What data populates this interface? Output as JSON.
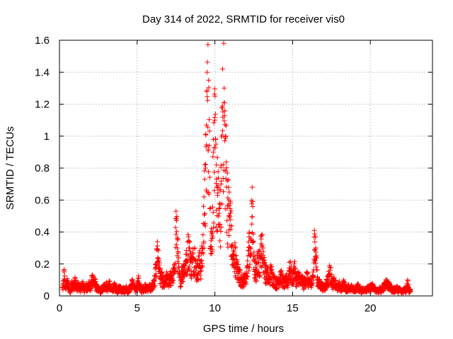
{
  "chart_data": {
    "type": "scatter",
    "title": "Day 314 of 2022, SRMTID for receiver vis0",
    "xlabel": "GPS time / hours",
    "ylabel": "SRMTID / TECUs",
    "xlim": [
      0,
      24
    ],
    "ylim": [
      0,
      1.6
    ],
    "xticks": [
      0,
      5,
      10,
      15,
      20
    ],
    "yticks": [
      0,
      0.2,
      0.4,
      0.6,
      0.8,
      1,
      1.2,
      1.4,
      1.6
    ],
    "xtick_labels": [
      "0",
      "5",
      "10",
      "15",
      "20"
    ],
    "ytick_labels": [
      "0",
      "0.2",
      "0.4",
      "0.6",
      "0.8",
      "1",
      "1.2",
      "1.4",
      "1.6"
    ],
    "grid": true,
    "marker": "+",
    "color": "#ff0000",
    "series": [
      {
        "name": "vis0",
        "x": [
          0.0,
          0.1,
          0.2,
          0.3,
          0.4,
          0.5,
          0.6,
          0.7,
          0.8,
          0.9,
          1.0,
          1.1,
          1.2,
          1.3,
          1.4,
          1.5,
          1.6,
          1.7,
          1.8,
          1.9,
          2.0,
          2.1,
          2.2,
          2.3,
          2.4,
          2.5,
          2.6,
          2.7,
          2.8,
          2.9,
          3.0,
          3.1,
          3.2,
          3.3,
          3.4,
          3.5,
          3.6,
          3.7,
          3.8,
          3.9,
          4.0,
          4.1,
          4.2,
          4.3,
          4.4,
          4.5,
          4.6,
          4.7,
          4.8,
          4.9,
          5.0,
          5.1,
          5.2,
          5.3,
          5.4,
          5.5,
          5.6,
          5.7,
          5.8,
          5.9,
          6.0,
          6.1,
          6.2,
          6.3,
          6.4,
          6.5,
          6.6,
          6.7,
          6.8,
          6.9,
          7.0,
          7.1,
          7.2,
          7.3,
          7.4,
          7.5,
          7.6,
          7.7,
          7.8,
          7.9,
          8.0,
          8.1,
          8.2,
          8.3,
          8.4,
          8.5,
          8.6,
          8.7,
          8.8,
          8.9,
          9.0,
          9.1,
          9.2,
          9.3,
          9.4,
          9.5,
          9.6,
          9.7,
          9.8,
          9.9,
          10.0,
          10.1,
          10.2,
          10.3,
          10.4,
          10.5,
          10.6,
          10.7,
          10.8,
          10.9,
          11.0,
          11.1,
          11.2,
          11.3,
          11.4,
          11.5,
          11.6,
          11.7,
          11.8,
          11.9,
          12.0,
          12.1,
          12.2,
          12.3,
          12.4,
          12.5,
          12.6,
          12.7,
          12.8,
          12.9,
          13.0,
          13.1,
          13.2,
          13.3,
          13.4,
          13.5,
          13.6,
          13.7,
          13.8,
          13.9,
          14.0,
          14.1,
          14.2,
          14.3,
          14.4,
          14.5,
          14.6,
          14.7,
          14.8,
          14.9,
          15.0,
          15.1,
          15.2,
          15.3,
          15.4,
          15.5,
          15.6,
          15.7,
          15.8,
          15.9,
          16.0,
          16.1,
          16.2,
          16.3,
          16.4,
          16.5,
          16.6,
          16.7,
          16.8,
          16.9,
          17.0,
          17.1,
          17.2,
          17.3,
          17.4,
          17.5,
          17.6,
          17.7,
          17.8,
          17.9,
          18.0,
          18.1,
          18.2,
          18.3,
          18.4,
          18.5,
          18.6,
          18.7,
          18.8,
          18.9,
          19.0,
          19.1,
          19.2,
          19.3,
          19.4,
          19.5,
          19.6,
          19.7,
          19.8,
          19.9,
          20.0,
          20.1,
          20.2,
          20.3,
          20.4,
          20.5,
          20.6,
          20.7,
          20.8,
          20.9,
          21.0,
          21.1,
          21.2,
          21.3,
          21.4,
          21.5,
          21.6,
          21.7,
          21.8,
          21.9,
          22.0,
          22.1,
          22.2,
          22.3,
          22.4,
          22.5,
          22.6,
          22.7,
          22.8,
          0.05,
          0.15,
          0.05,
          0.1,
          0.07,
          0.04,
          0.09,
          0.06,
          0.11,
          0.05,
          0.08,
          0.06,
          0.05,
          0.09,
          0.04,
          0.07,
          0.06,
          0.08,
          0.05,
          0.13,
          0.12,
          0.09,
          0.06,
          0.05,
          0.04,
          0.03,
          0.06,
          0.07,
          0.08,
          0.05,
          0.09,
          0.05,
          0.04,
          0.07,
          0.06,
          0.03,
          0.05,
          0.06,
          0.04,
          0.05,
          0.04,
          0.06,
          0.03,
          0.05,
          0.07,
          0.1,
          0.06,
          0.04,
          0.08,
          0.11,
          0.06,
          0.04,
          0.05,
          0.07,
          0.06,
          0.05,
          0.07,
          0.05,
          0.08,
          0.09,
          0.2,
          0.34,
          0.22,
          0.14,
          0.12,
          0.08,
          0.1,
          0.13,
          0.11,
          0.14,
          0.12,
          0.15,
          0.17,
          0.53,
          0.35,
          0.14,
          0.12,
          0.18,
          0.2,
          0.22,
          0.26,
          0.37,
          0.28,
          0.22,
          0.27,
          0.3,
          0.18,
          0.2,
          0.25,
          0.22,
          0.3,
          0.62,
          0.8,
          1.4,
          1.35,
          0.55,
          0.38,
          0.9,
          1.1,
          0.82,
          0.69,
          0.55,
          0.7,
          1.42,
          1.3,
          1.0,
          0.72,
          0.6,
          0.58,
          0.32,
          0.25,
          0.3,
          0.2,
          0.18,
          0.15,
          0.12,
          0.1,
          0.13,
          0.11,
          0.22,
          0.37,
          0.3,
          0.68,
          0.25,
          0.18,
          0.2,
          0.28,
          0.25,
          0.38,
          0.3,
          0.2,
          0.16,
          0.15,
          0.12,
          0.18,
          0.14,
          0.12,
          0.1,
          0.09,
          0.11,
          0.15,
          0.13,
          0.1,
          0.09,
          0.12,
          0.1,
          0.21,
          0.16,
          0.12,
          0.2,
          0.14,
          0.11,
          0.15,
          0.1,
          0.12,
          0.09,
          0.1,
          0.15,
          0.11,
          0.09,
          0.08,
          0.12,
          0.41,
          0.3,
          0.12,
          0.09,
          0.08,
          0.07,
          0.06,
          0.07,
          0.1,
          0.13,
          0.18,
          0.12,
          0.09,
          0.1,
          0.07,
          0.06,
          0.08,
          0.05,
          0.07,
          0.09,
          0.06,
          0.05,
          0.07,
          0.04,
          0.06,
          0.05,
          0.04,
          0.06,
          0.07,
          0.05,
          0.04,
          0.05,
          0.04,
          0.05,
          0.06,
          0.05,
          0.06,
          0.07,
          0.06,
          0.05,
          0.04,
          0.03,
          0.05,
          0.04,
          0.06,
          0.08,
          0.1,
          0.09,
          0.07,
          0.06,
          0.05,
          0.04,
          0.05,
          0.06,
          0.04,
          0.05,
          0.03,
          0.04,
          0.05,
          0.04,
          0.1,
          0.03,
          0.04
        ]
      }
    ]
  }
}
